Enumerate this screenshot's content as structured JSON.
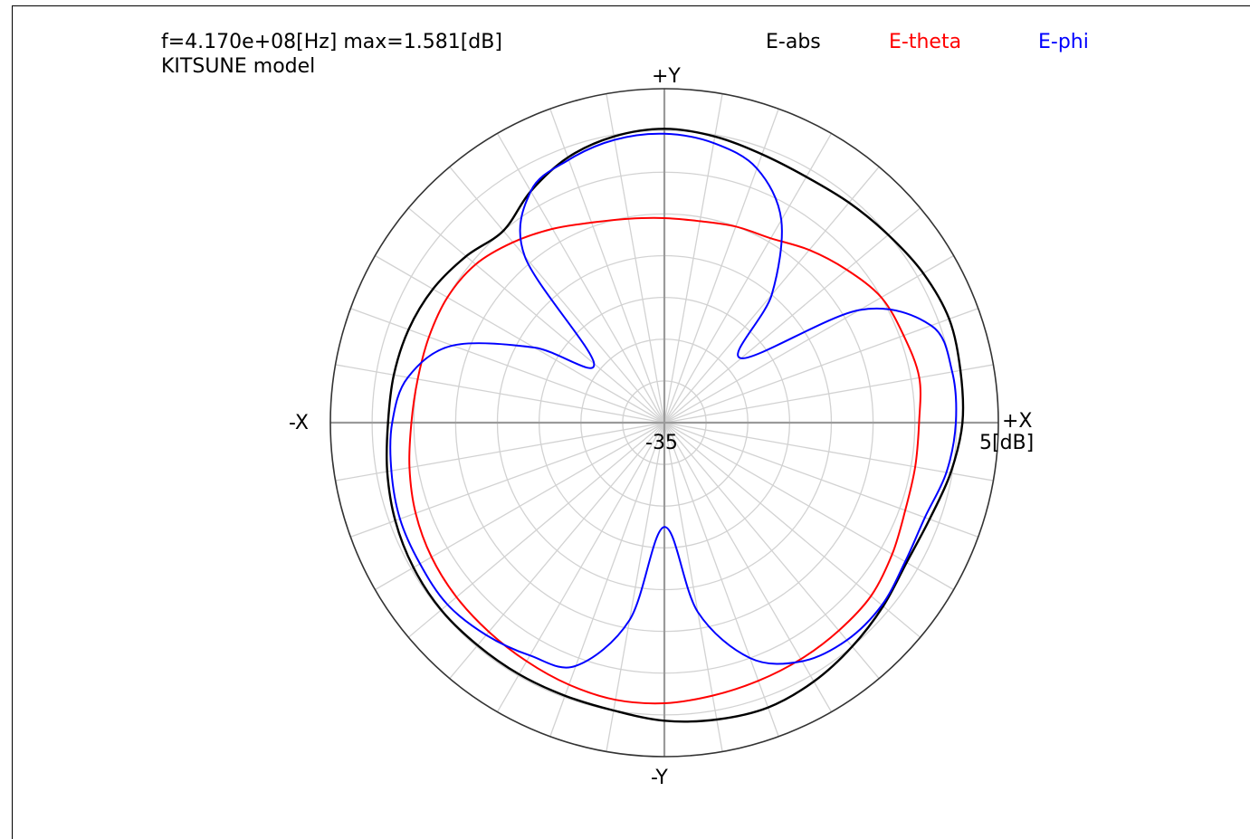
{
  "chart_data": {
    "type": "polar",
    "title": "f=4.170e+08[Hz] max=1.581[dB]",
    "subtitle": "KITSUNE model",
    "axis_labels": {
      "pos_y": "+Y",
      "neg_y": "-Y",
      "pos_x": "+X",
      "neg_x": "-X"
    },
    "r_min_label": "-35",
    "r_max_label": "5[dB]",
    "r_range": [
      -35,
      5
    ],
    "r_grid_step": 5,
    "angle_grid_step_deg": 10,
    "legend": [
      {
        "name": "E-abs",
        "color": "#000000"
      },
      {
        "name": "E-theta",
        "color": "#ff0000"
      },
      {
        "name": "E-phi",
        "color": "#0000ff"
      }
    ],
    "angles_deg": [
      0,
      10,
      20,
      30,
      40,
      50,
      60,
      70,
      80,
      90,
      100,
      110,
      120,
      130,
      140,
      150,
      160,
      170,
      180,
      190,
      200,
      210,
      220,
      230,
      240,
      250,
      260,
      270,
      280,
      290,
      300,
      310,
      320,
      330,
      340,
      350
    ],
    "series": [
      {
        "name": "E-abs",
        "color": "#000000",
        "values": [
          0.7,
          1.0,
          1.3,
          0.8,
          0.0,
          -0.6,
          -1.0,
          -0.8,
          -0.2,
          0.2,
          -0.2,
          -1.2,
          -3.0,
          -5.0,
          -4.0,
          -3.0,
          -2.4,
          -2.1,
          -1.9,
          -1.3,
          -0.7,
          -0.3,
          -0.1,
          -0.2,
          -0.2,
          -0.2,
          0.0,
          0.7,
          1.1,
          1.3,
          0.8,
          0.0,
          -0.8,
          -1.5,
          -1.2,
          -0.2
        ]
      },
      {
        "name": "E-theta",
        "color": "#ff0000",
        "values": [
          -4.5,
          -4.0,
          -4.5,
          -5.0,
          -6.5,
          -8.0,
          -9.5,
          -10.0,
          -10.5,
          -10.5,
          -10.2,
          -9.5,
          -8.2,
          -6.8,
          -5.5,
          -5.0,
          -5.0,
          -5.0,
          -4.7,
          -4.0,
          -3.3,
          -2.8,
          -2.5,
          -2.3,
          -2.0,
          -1.6,
          -1.3,
          -1.4,
          -1.8,
          -2.1,
          -2.3,
          -2.5,
          -2.7,
          -3.5,
          -4.3,
          -4.5
        ]
      },
      {
        "name": "E-phi",
        "color": "#0000ff",
        "values": [
          -0.1,
          0.0,
          -1.0,
          -8.0,
          -23.0,
          -15.0,
          -7.0,
          -2.6,
          -1.0,
          -0.4,
          -0.6,
          -1.5,
          -3.0,
          -9.0,
          -24.0,
          -17.0,
          -8.0,
          -3.8,
          -2.4,
          -1.8,
          -1.3,
          -1.2,
          -1.1,
          -1.8,
          -2.8,
          -4.0,
          -11.0,
          -22.5,
          -12.0,
          -5.0,
          -2.0,
          -1.0,
          -1.0,
          -1.7,
          -1.8,
          -0.7
        ]
      }
    ]
  }
}
